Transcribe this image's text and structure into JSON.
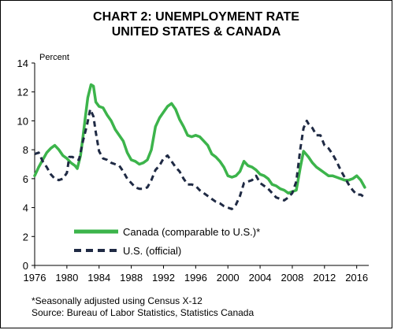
{
  "chart_data": {
    "type": "line",
    "title": "CHART 2: UNEMPLOYMENT RATE",
    "subtitle": "UNITED STATES & CANADA",
    "ylabel": "Percent",
    "xlabel": "",
    "xlim": [
      1976,
      2017.5
    ],
    "ylim": [
      0,
      14
    ],
    "yticks": [
      0,
      2,
      4,
      6,
      8,
      10,
      12,
      14
    ],
    "xticks": [
      1976,
      1980,
      1984,
      1988,
      1992,
      1996,
      2000,
      2004,
      2008,
      2012,
      2016
    ],
    "grid": false,
    "legend_position": "bottom-left",
    "series": [
      {
        "name": "Canada (comparable to U.S.)*",
        "color": "#3cb44b",
        "style": "solid",
        "points": [
          [
            1976,
            6.2
          ],
          [
            1976.5,
            6.8
          ],
          [
            1977,
            7.3
          ],
          [
            1977.5,
            7.8
          ],
          [
            1978,
            8.1
          ],
          [
            1978.5,
            8.3
          ],
          [
            1979,
            8.0
          ],
          [
            1979.5,
            7.6
          ],
          [
            1980,
            7.4
          ],
          [
            1980.5,
            7.1
          ],
          [
            1981,
            6.9
          ],
          [
            1981.3,
            6.7
          ],
          [
            1981.7,
            7.6
          ],
          [
            1982,
            8.9
          ],
          [
            1982.3,
            10.3
          ],
          [
            1982.6,
            11.6
          ],
          [
            1983,
            12.5
          ],
          [
            1983.3,
            12.4
          ],
          [
            1983.6,
            11.3
          ],
          [
            1984,
            11.0
          ],
          [
            1984.5,
            10.9
          ],
          [
            1985,
            10.4
          ],
          [
            1985.5,
            10.0
          ],
          [
            1986,
            9.4
          ],
          [
            1986.5,
            9.0
          ],
          [
            1987,
            8.6
          ],
          [
            1987.5,
            7.8
          ],
          [
            1988,
            7.3
          ],
          [
            1988.5,
            7.2
          ],
          [
            1989,
            7.0
          ],
          [
            1989.5,
            7.1
          ],
          [
            1990,
            7.3
          ],
          [
            1990.5,
            8.0
          ],
          [
            1991,
            9.6
          ],
          [
            1991.5,
            10.2
          ],
          [
            1992,
            10.6
          ],
          [
            1992.5,
            11.0
          ],
          [
            1993,
            11.2
          ],
          [
            1993.5,
            10.8
          ],
          [
            1994,
            10.1
          ],
          [
            1994.5,
            9.6
          ],
          [
            1995,
            9.0
          ],
          [
            1995.5,
            8.9
          ],
          [
            1996,
            9.0
          ],
          [
            1996.5,
            8.9
          ],
          [
            1997,
            8.6
          ],
          [
            1997.5,
            8.3
          ],
          [
            1998,
            7.7
          ],
          [
            1998.5,
            7.5
          ],
          [
            1999,
            7.2
          ],
          [
            1999.5,
            6.8
          ],
          [
            2000,
            6.2
          ],
          [
            2000.5,
            6.1
          ],
          [
            2001,
            6.2
          ],
          [
            2001.5,
            6.5
          ],
          [
            2002,
            7.2
          ],
          [
            2002.5,
            6.9
          ],
          [
            2003,
            6.8
          ],
          [
            2003.5,
            6.6
          ],
          [
            2004,
            6.3
          ],
          [
            2004.5,
            6.2
          ],
          [
            2005,
            6.0
          ],
          [
            2005.5,
            5.6
          ],
          [
            2006,
            5.5
          ],
          [
            2006.5,
            5.3
          ],
          [
            2007,
            5.2
          ],
          [
            2007.5,
            5.0
          ],
          [
            2008,
            5.1
          ],
          [
            2008.5,
            5.2
          ],
          [
            2009,
            6.8
          ],
          [
            2009.4,
            7.9
          ],
          [
            2010,
            7.5
          ],
          [
            2010.5,
            7.1
          ],
          [
            2011,
            6.8
          ],
          [
            2011.5,
            6.6
          ],
          [
            2012,
            6.4
          ],
          [
            2012.5,
            6.2
          ],
          [
            2013,
            6.2
          ],
          [
            2013.5,
            6.1
          ],
          [
            2014,
            6.0
          ],
          [
            2014.5,
            5.9
          ],
          [
            2015,
            5.9
          ],
          [
            2015.5,
            6.0
          ],
          [
            2016,
            6.2
          ],
          [
            2016.5,
            5.9
          ],
          [
            2017,
            5.4
          ]
        ]
      },
      {
        "name": "U.S. (official)",
        "color": "#1f2a44",
        "style": "dashed",
        "points": [
          [
            1976,
            7.7
          ],
          [
            1976.5,
            7.8
          ],
          [
            1977,
            7.2
          ],
          [
            1977.5,
            6.8
          ],
          [
            1978,
            6.3
          ],
          [
            1978.5,
            6.0
          ],
          [
            1979,
            5.9
          ],
          [
            1979.5,
            6.0
          ],
          [
            1980,
            6.4
          ],
          [
            1980.3,
            7.5
          ],
          [
            1980.7,
            7.5
          ],
          [
            1981,
            7.4
          ],
          [
            1981.5,
            7.3
          ],
          [
            1982,
            8.6
          ],
          [
            1982.5,
            9.7
          ],
          [
            1982.9,
            10.8
          ],
          [
            1983.3,
            10.3
          ],
          [
            1983.6,
            9.2
          ],
          [
            1984,
            7.9
          ],
          [
            1984.5,
            7.4
          ],
          [
            1985,
            7.3
          ],
          [
            1985.5,
            7.1
          ],
          [
            1986,
            7.0
          ],
          [
            1986.5,
            6.9
          ],
          [
            1987,
            6.5
          ],
          [
            1987.5,
            6.0
          ],
          [
            1988,
            5.7
          ],
          [
            1988.5,
            5.4
          ],
          [
            1989,
            5.3
          ],
          [
            1989.5,
            5.3
          ],
          [
            1990,
            5.4
          ],
          [
            1990.5,
            5.9
          ],
          [
            1991,
            6.6
          ],
          [
            1991.5,
            6.9
          ],
          [
            1992,
            7.4
          ],
          [
            1992.5,
            7.6
          ],
          [
            1993,
            7.2
          ],
          [
            1993.5,
            6.8
          ],
          [
            1994,
            6.5
          ],
          [
            1994.5,
            6.0
          ],
          [
            1995,
            5.6
          ],
          [
            1995.5,
            5.6
          ],
          [
            1996,
            5.5
          ],
          [
            1996.5,
            5.2
          ],
          [
            1997,
            5.0
          ],
          [
            1997.5,
            4.8
          ],
          [
            1998,
            4.6
          ],
          [
            1998.5,
            4.4
          ],
          [
            1999,
            4.3
          ],
          [
            1999.5,
            4.1
          ],
          [
            2000,
            4.0
          ],
          [
            2000.5,
            3.9
          ],
          [
            2001,
            4.2
          ],
          [
            2001.5,
            4.8
          ],
          [
            2002,
            5.7
          ],
          [
            2002.5,
            5.8
          ],
          [
            2003,
            5.9
          ],
          [
            2003.5,
            6.2
          ],
          [
            2004,
            5.7
          ],
          [
            2004.5,
            5.5
          ],
          [
            2005,
            5.3
          ],
          [
            2005.5,
            5.0
          ],
          [
            2006,
            4.7
          ],
          [
            2006.5,
            4.6
          ],
          [
            2007,
            4.5
          ],
          [
            2007.5,
            4.7
          ],
          [
            2008,
            5.0
          ],
          [
            2008.5,
            5.8
          ],
          [
            2009,
            8.1
          ],
          [
            2009.4,
            9.5
          ],
          [
            2009.8,
            10.0
          ],
          [
            2010,
            9.8
          ],
          [
            2010.5,
            9.5
          ],
          [
            2011,
            9.0
          ],
          [
            2011.5,
            9.0
          ],
          [
            2012,
            8.3
          ],
          [
            2012.5,
            8.1
          ],
          [
            2013,
            7.7
          ],
          [
            2013.5,
            7.2
          ],
          [
            2014,
            6.6
          ],
          [
            2014.5,
            6.1
          ],
          [
            2015,
            5.6
          ],
          [
            2015.5,
            5.2
          ],
          [
            2016,
            4.9
          ],
          [
            2016.5,
            4.9
          ],
          [
            2017,
            4.7
          ]
        ]
      }
    ]
  },
  "footnotes": {
    "note": "*Seasonally adjusted using Census X-12",
    "source": "Source: Bureau of Labor Statistics, Statistics Canada"
  }
}
